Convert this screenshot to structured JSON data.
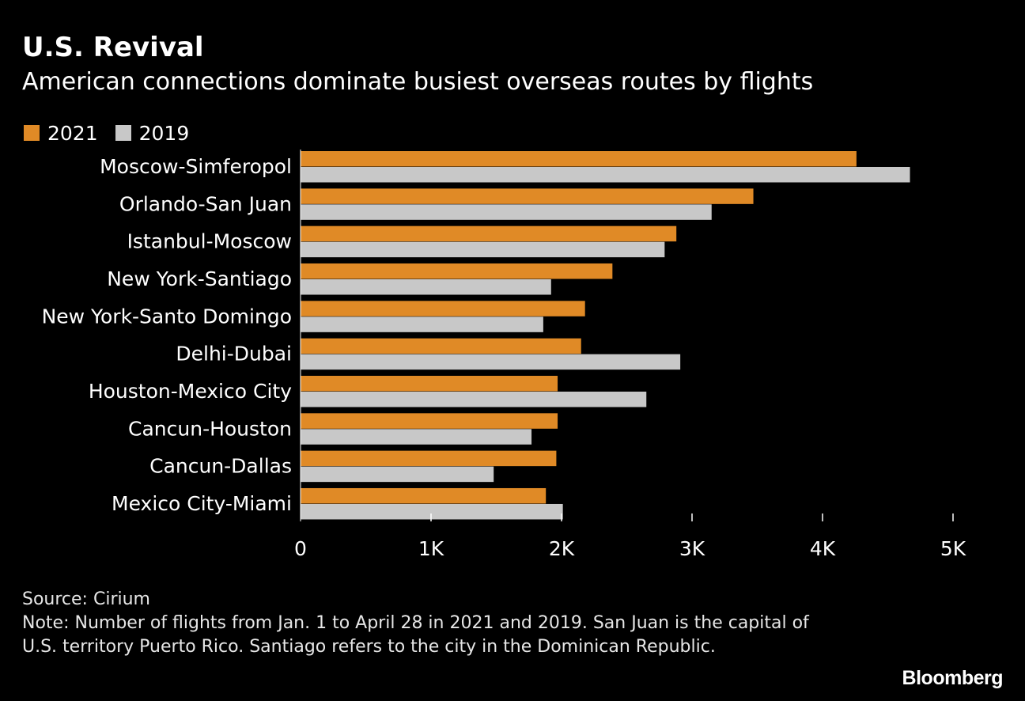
{
  "title": "U.S. Revival",
  "subtitle": "American connections dominate busiest overseas routes by flights",
  "colors": {
    "s2021": "#e08a26",
    "s2019": "#c8c8c8",
    "background": "#000000"
  },
  "chart_data": {
    "type": "bar",
    "orientation": "horizontal",
    "categories": [
      "Moscow-Simferopol",
      "Orlando-San Juan",
      "Istanbul-Moscow",
      "New York-Santiago",
      "New York-Santo Domingo",
      "Delhi-Dubai",
      "Houston-Mexico City",
      "Cancun-Houston",
      "Cancun-Dallas",
      "Mexico City-Miami"
    ],
    "series": [
      {
        "name": "2021",
        "values": [
          4260,
          3470,
          2880,
          2390,
          2180,
          2150,
          1970,
          1970,
          1960,
          1880
        ]
      },
      {
        "name": "2019",
        "values": [
          4670,
          3150,
          2790,
          1920,
          1860,
          2910,
          2650,
          1770,
          1480,
          2010
        ]
      }
    ],
    "xlim": [
      0,
      5000
    ],
    "xticks": [
      {
        "value": 0,
        "label": "0"
      },
      {
        "value": 1000,
        "label": "1K"
      },
      {
        "value": 2000,
        "label": "2K"
      },
      {
        "value": 3000,
        "label": "3K"
      },
      {
        "value": 4000,
        "label": "4K"
      },
      {
        "value": 5000,
        "label": "5K"
      }
    ],
    "legend_position": "top-left",
    "grid": false
  },
  "footer": {
    "source": "Source: Cirium",
    "note": "Note: Number of flights from Jan. 1 to April 28 in 2021 and 2019. San Juan is the capital of U.S. territory Puerto Rico. Santiago refers to the city in the Dominican Republic."
  },
  "logo": "Bloomberg"
}
